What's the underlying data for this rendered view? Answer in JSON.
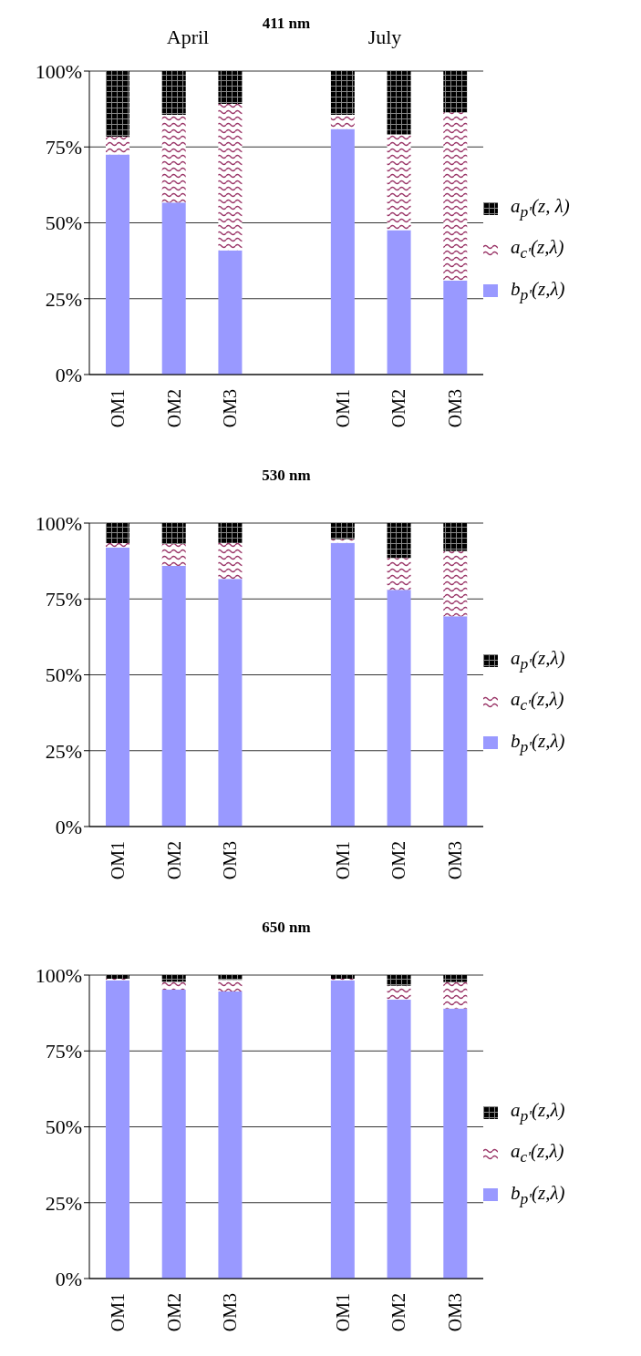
{
  "chart_data": [
    {
      "type": "bar",
      "title": "411 nm",
      "annotations": [
        "April",
        "July"
      ],
      "stacked": true,
      "grid": "y",
      "legend": "right",
      "categories": [
        "OM1",
        "OM2",
        "OM3",
        null,
        "OM1",
        "OM2",
        "OM3"
      ],
      "ylim": [
        0,
        100
      ],
      "yticks": [
        {
          "value": 0,
          "label": "0%"
        },
        {
          "value": 25,
          "label": "25%"
        },
        {
          "value": 50,
          "label": "50%"
        },
        {
          "value": 75,
          "label": "75%"
        },
        {
          "value": 100,
          "label": "100%"
        }
      ],
      "series": [
        {
          "name": "b$_{p'}$(z,λ)",
          "color": "#9999ff",
          "values": [
            72.5,
            56.7,
            40.9,
            null,
            80.9,
            47.6,
            31.0
          ]
        },
        {
          "name": "a$_{c'}$(z,λ)",
          "color": "#993366",
          "values": [
            5.9,
            28.9,
            48.3,
            null,
            4.7,
            31.5,
            55.4
          ]
        },
        {
          "name": "a$_{p'}$(z, λ)",
          "color": "#000000",
          "values": [
            21.6,
            14.4,
            10.8,
            null,
            14.4,
            20.9,
            13.6
          ]
        }
      ]
    },
    {
      "type": "bar",
      "title": "530 nm",
      "stacked": true,
      "grid": "y",
      "legend": "right",
      "categories": [
        "OM1",
        "OM2",
        "OM3",
        null,
        "OM1",
        "OM2",
        "OM3"
      ],
      "ylim": [
        0,
        100
      ],
      "yticks": [
        {
          "value": 0,
          "label": "0%"
        },
        {
          "value": 25,
          "label": "25%"
        },
        {
          "value": 50,
          "label": "50%"
        },
        {
          "value": 75,
          "label": "75%"
        },
        {
          "value": 100,
          "label": "100%"
        }
      ],
      "series": [
        {
          "name": "b$_{p'}$(z,λ)",
          "color": "#9999ff",
          "values": [
            92.0,
            85.9,
            81.6,
            null,
            93.5,
            78.0,
            69.3
          ]
        },
        {
          "name": "a$_{c'}$(z,λ)",
          "color": "#993366",
          "values": [
            1.4,
            7.2,
            11.9,
            null,
            1.2,
            10.5,
            21.5
          ]
        },
        {
          "name": "a$_{p'}$(z,λ)",
          "color": "#000000",
          "values": [
            6.6,
            6.9,
            6.5,
            null,
            5.3,
            11.5,
            9.2
          ]
        }
      ]
    },
    {
      "type": "bar",
      "title": "650 nm",
      "stacked": true,
      "grid": "y",
      "legend": "right",
      "categories": [
        "OM1",
        "OM2",
        "OM3",
        null,
        "OM1",
        "OM2",
        "OM3"
      ],
      "ylim": [
        0,
        100
      ],
      "yticks": [
        {
          "value": 0,
          "label": "0%"
        },
        {
          "value": 25,
          "label": "25%"
        },
        {
          "value": 50,
          "label": "50%"
        },
        {
          "value": 75,
          "label": "75%"
        },
        {
          "value": 100,
          "label": "100%"
        }
      ],
      "series": [
        {
          "name": "b$_{p'}$(z,λ)",
          "color": "#9999ff",
          "values": [
            98.3,
            95.2,
            94.6,
            null,
            98.3,
            91.9,
            89.0
          ]
        },
        {
          "name": "a$_{c'}$(z,λ)",
          "color": "#993366",
          "values": [
            0.5,
            2.6,
            3.8,
            null,
            0.5,
            4.6,
            8.7
          ]
        },
        {
          "name": "a$_{p'}$(z,λ)",
          "color": "#000000",
          "values": [
            1.2,
            2.2,
            1.6,
            null,
            1.2,
            3.5,
            2.3
          ]
        }
      ]
    }
  ]
}
